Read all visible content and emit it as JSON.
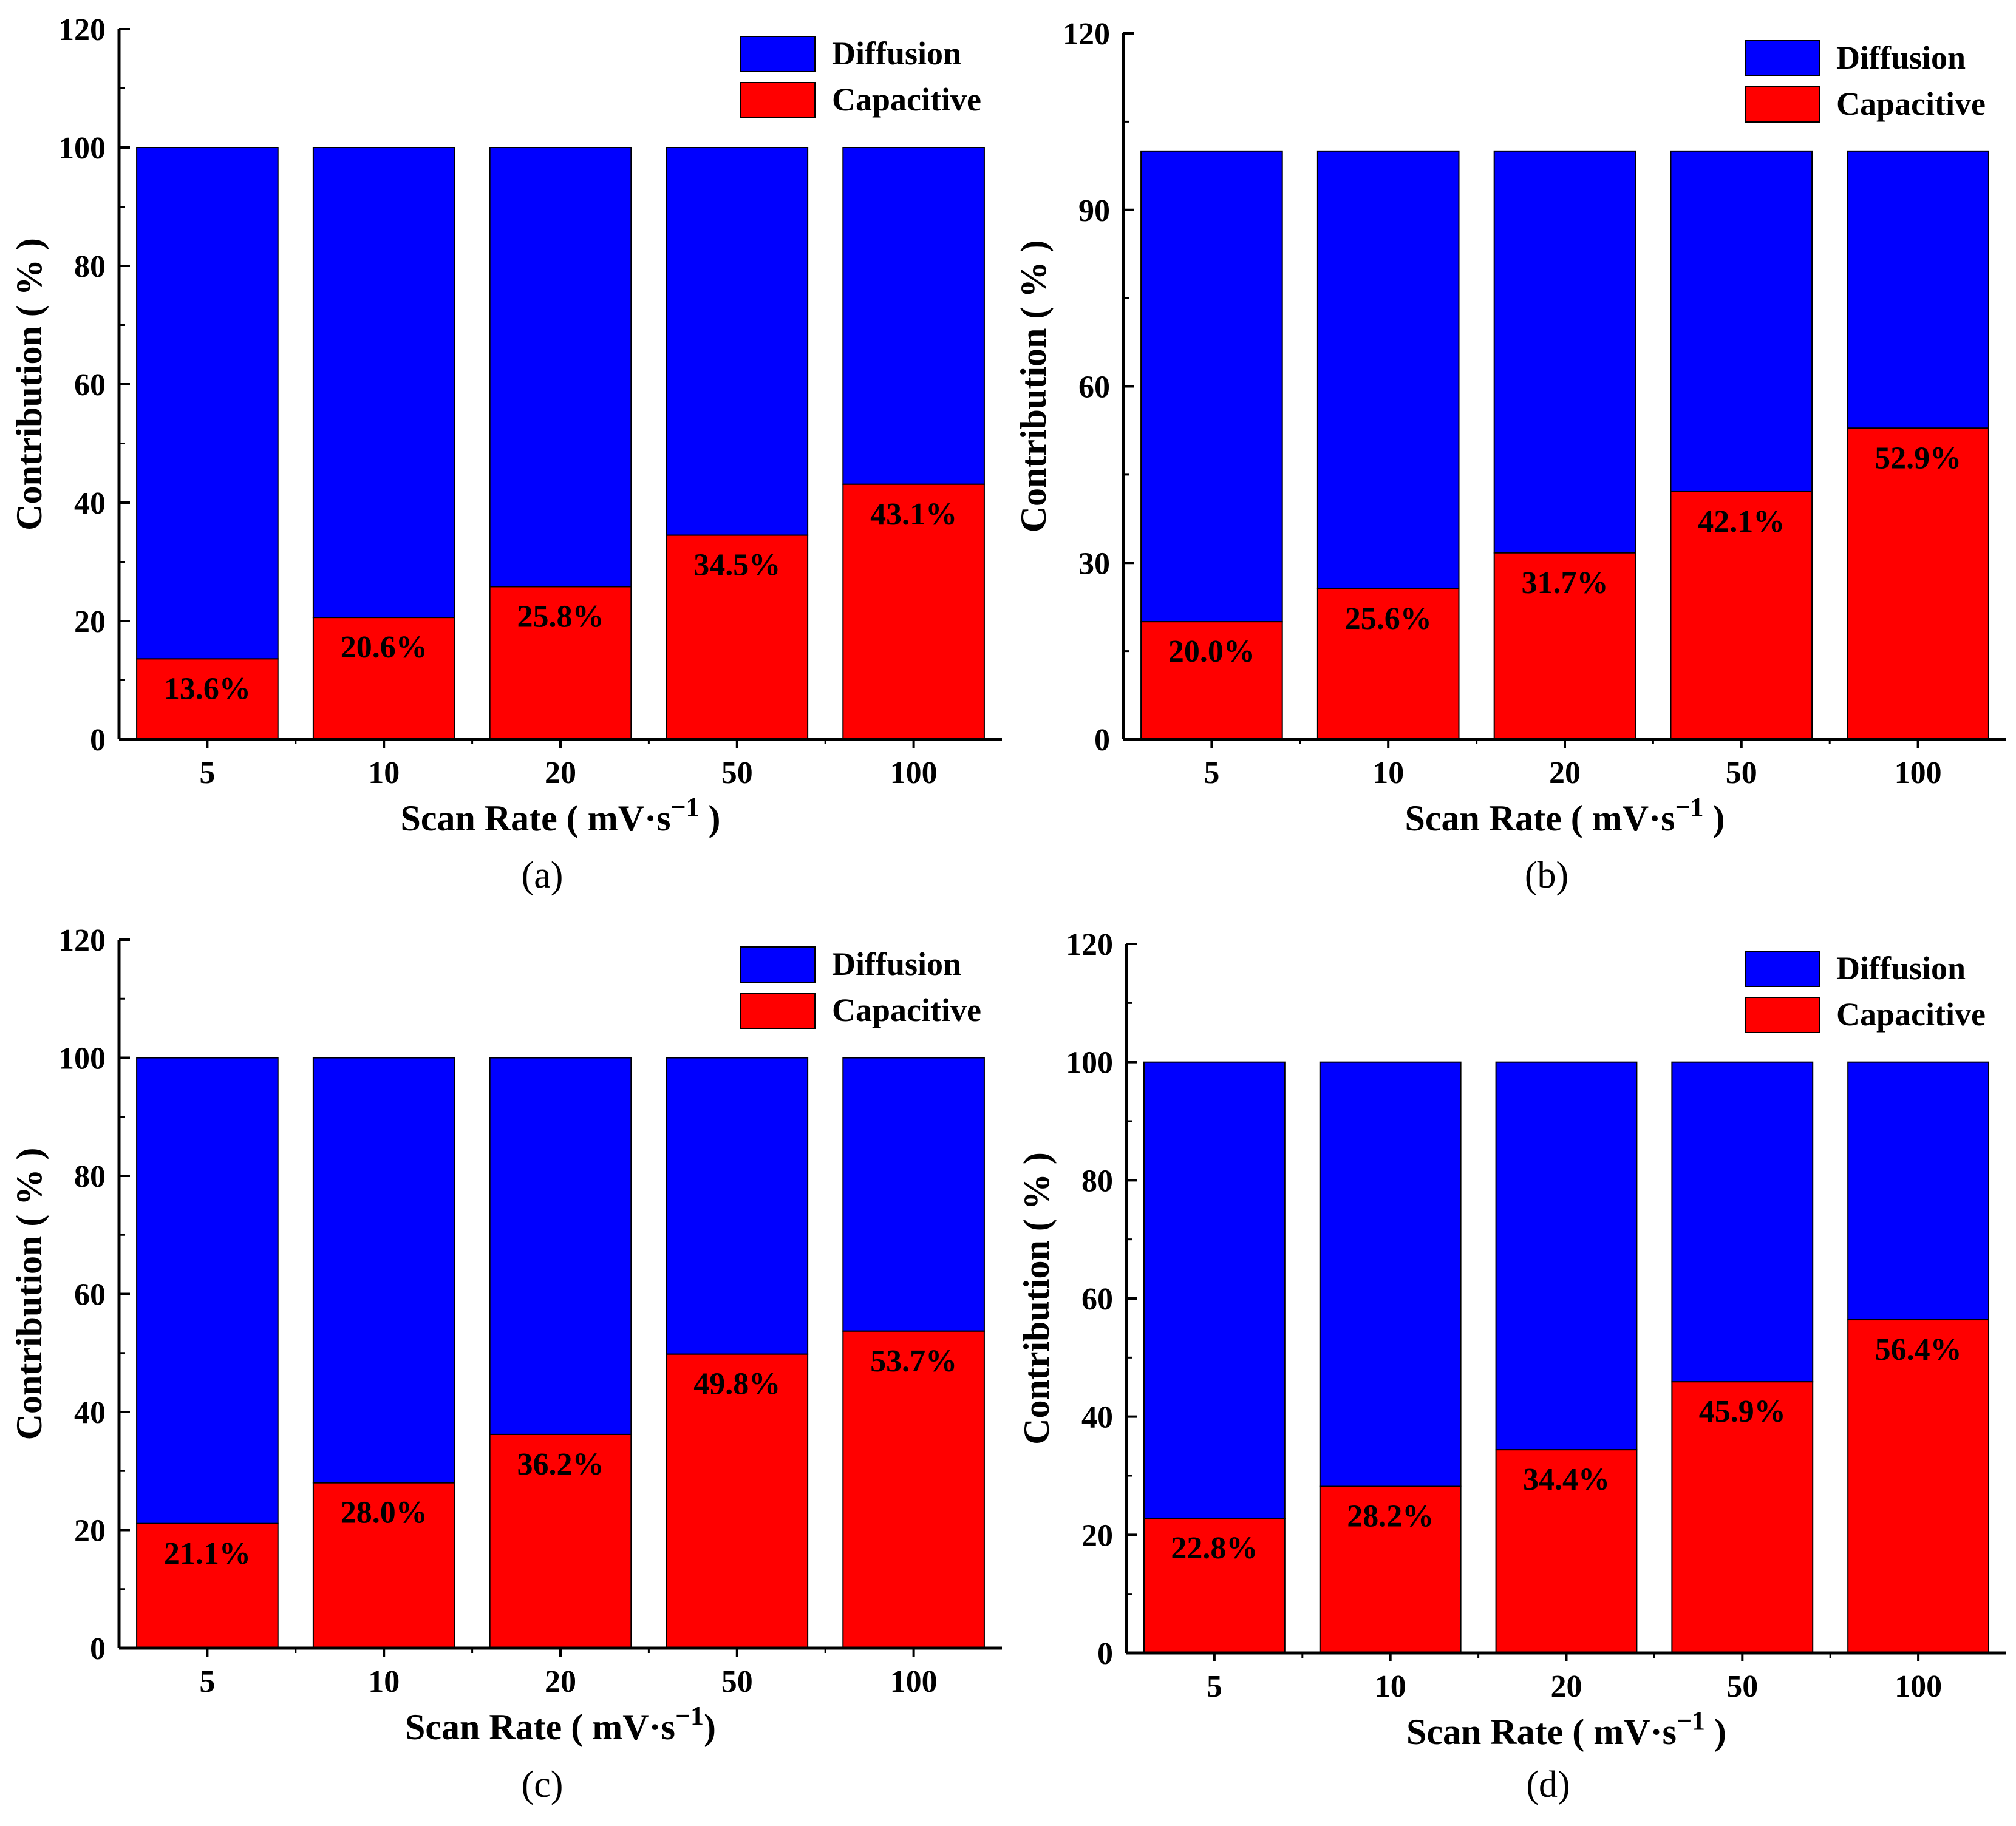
{
  "chart_data": [
    {
      "type": "bar",
      "stacked": true,
      "panel": "(a)",
      "categories": [
        "5",
        "10",
        "20",
        "50",
        "100"
      ],
      "series": [
        {
          "name": "Capacitive",
          "color": "#ff0000",
          "values": [
            13.6,
            20.6,
            25.8,
            34.5,
            43.1
          ]
        },
        {
          "name": "Diffusion",
          "color": "#0000ff",
          "values": [
            86.4,
            79.4,
            74.2,
            65.5,
            56.9
          ]
        }
      ],
      "data_labels": [
        "13.6%",
        "20.6%",
        "25.8%",
        "34.5%",
        "43.1%"
      ],
      "xlabel": "Scan Rate ( mV·s",
      "xlabel_sup": "−1",
      "xlabel_end": " )",
      "ylabel": "Contribution ( % )",
      "ylim": [
        0,
        120
      ],
      "yticks": [
        0,
        20,
        40,
        60,
        80,
        100,
        120
      ],
      "legend": [
        "Diffusion",
        "Capacitive"
      ],
      "legend_position": "top-right",
      "grid": false
    },
    {
      "type": "bar",
      "stacked": true,
      "panel": "(b)",
      "categories": [
        "5",
        "10",
        "20",
        "50",
        "100"
      ],
      "series": [
        {
          "name": "Capacitive",
          "color": "#ff0000",
          "values": [
            20.0,
            25.6,
            31.7,
            42.1,
            52.9
          ]
        },
        {
          "name": "Diffusion",
          "color": "#0000ff",
          "values": [
            80.0,
            74.4,
            68.3,
            57.9,
            47.1
          ]
        }
      ],
      "data_labels": [
        "20.0%",
        "25.6%",
        "31.7%",
        "42.1%",
        "52.9%"
      ],
      "xlabel": "Scan Rate ( mV·s",
      "xlabel_sup": "−1",
      "xlabel_end": " )",
      "ylabel": "Contribution ( % )",
      "ylim": [
        0,
        120
      ],
      "yticks": [
        0,
        30,
        60,
        90,
        120
      ],
      "legend": [
        "Diffusion",
        "Capacitive"
      ],
      "legend_position": "top-right",
      "grid": false
    },
    {
      "type": "bar",
      "stacked": true,
      "panel": "(c)",
      "categories": [
        "5",
        "10",
        "20",
        "50",
        "100"
      ],
      "series": [
        {
          "name": "Capacitive",
          "color": "#ff0000",
          "values": [
            21.1,
            28.0,
            36.2,
            49.8,
            53.7
          ]
        },
        {
          "name": "Diffusion",
          "color": "#0000ff",
          "values": [
            78.9,
            72.0,
            63.8,
            50.2,
            46.3
          ]
        }
      ],
      "data_labels": [
        "21.1%",
        "28.0%",
        "36.2%",
        "49.8%",
        "53.7%"
      ],
      "xlabel": "Scan Rate ( mV·s",
      "xlabel_sup": "−1",
      "xlabel_end": ")",
      "ylabel": "Contribution ( % )",
      "ylim": [
        0,
        120
      ],
      "yticks": [
        0,
        20,
        40,
        60,
        80,
        100,
        120
      ],
      "legend": [
        "Diffusion",
        "Capacitive"
      ],
      "legend_position": "top-right",
      "grid": false
    },
    {
      "type": "bar",
      "stacked": true,
      "panel": "(d)",
      "categories": [
        "5",
        "10",
        "20",
        "50",
        "100"
      ],
      "series": [
        {
          "name": "Capacitive",
          "color": "#ff0000",
          "values": [
            22.8,
            28.2,
            34.4,
            45.9,
            56.4
          ]
        },
        {
          "name": "Diffusion",
          "color": "#0000ff",
          "values": [
            77.2,
            71.8,
            65.6,
            54.1,
            43.6
          ]
        }
      ],
      "data_labels": [
        "22.8%",
        "28.2%",
        "34.4%",
        "45.9%",
        "56.4%"
      ],
      "xlabel": "Scan Rate ( mV·s",
      "xlabel_sup": "−1",
      "xlabel_end": " )",
      "ylabel": "Contribution ( % )",
      "ylim": [
        0,
        120
      ],
      "yticks": [
        0,
        20,
        40,
        60,
        80,
        100,
        120
      ],
      "legend": [
        "Diffusion",
        "Capacitive"
      ],
      "legend_position": "top-right",
      "grid": false
    }
  ]
}
